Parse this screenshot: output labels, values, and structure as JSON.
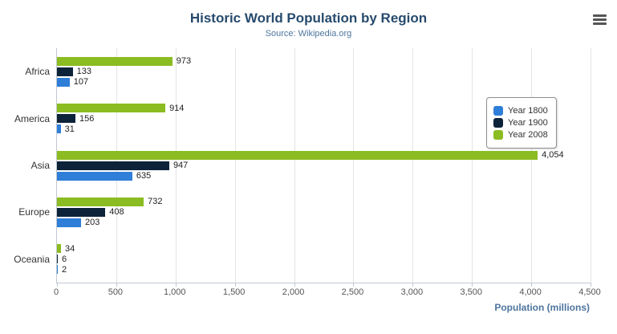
{
  "chart_data": {
    "type": "bar",
    "title": "Historic World Population by Region",
    "subtitle": "Source: Wikipedia.org",
    "categories": [
      "Africa",
      "America",
      "Asia",
      "Europe",
      "Oceania"
    ],
    "series": [
      {
        "name": "Year 1800",
        "color": "#2f7ed8",
        "values": [
          107,
          31,
          635,
          203,
          2
        ]
      },
      {
        "name": "Year 1900",
        "color": "#0d233a",
        "values": [
          133,
          156,
          947,
          408,
          6
        ]
      },
      {
        "name": "Year 2008",
        "color": "#8bbc21",
        "values": [
          973,
          914,
          4054,
          732,
          34
        ]
      }
    ],
    "bar_order_top_to_bottom": [
      "Year 2008",
      "Year 1900",
      "Year 1800"
    ],
    "xlabel": "Population (millions)",
    "ylabel": "",
    "xlim": [
      0,
      4500
    ],
    "xticks": [
      0,
      500,
      1000,
      1500,
      2000,
      2500,
      3000,
      3500,
      4000,
      4500
    ],
    "grid": true,
    "legend_position": "right"
  },
  "colors": {
    "title": "#274b6d",
    "subtitle": "#4d759e",
    "axis_title": "#4d759e",
    "gridline": "#e4e4e4"
  },
  "icons": {
    "menu": "hamburger-menu-icon"
  }
}
